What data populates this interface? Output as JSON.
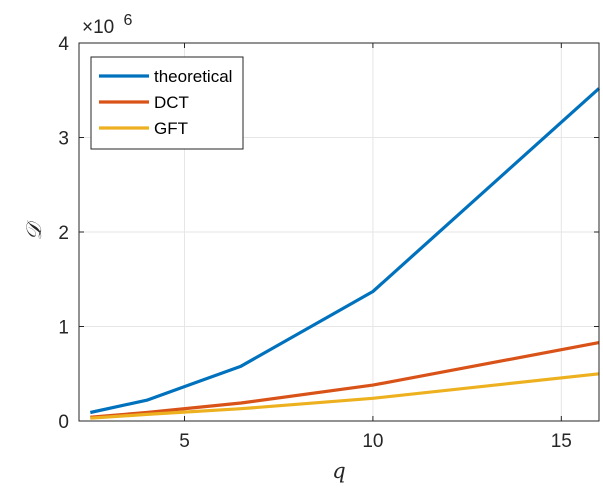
{
  "chart_data": {
    "type": "line",
    "xlabel": "q",
    "ylabel": "𝒟",
    "xlim": [
      2.2,
      16
    ],
    "ylim": [
      0,
      4
    ],
    "y_exponent_label": "×10",
    "y_exponent_power": "6",
    "xticks": [
      5,
      10,
      15
    ],
    "xtick_labels": [
      "5",
      "10",
      "15"
    ],
    "yticks": [
      0,
      1,
      2,
      3,
      4
    ],
    "ytick_labels": [
      "0",
      "1",
      "2",
      "3",
      "4"
    ],
    "grid": true,
    "legend_position": "top-left",
    "series": [
      {
        "name": "theoretical",
        "color": "#0072BD",
        "x": [
          2.5,
          4,
          6.5,
          10,
          16
        ],
        "y": [
          0.09,
          0.22,
          0.58,
          1.37,
          3.52
        ]
      },
      {
        "name": "DCT",
        "color": "#D95319",
        "x": [
          2.5,
          4,
          6.5,
          10,
          16
        ],
        "y": [
          0.04,
          0.09,
          0.19,
          0.38,
          0.83
        ]
      },
      {
        "name": "GFT",
        "color": "#EDB120",
        "x": [
          2.5,
          4,
          6.5,
          10,
          16
        ],
        "y": [
          0.03,
          0.07,
          0.13,
          0.24,
          0.5
        ]
      }
    ]
  }
}
